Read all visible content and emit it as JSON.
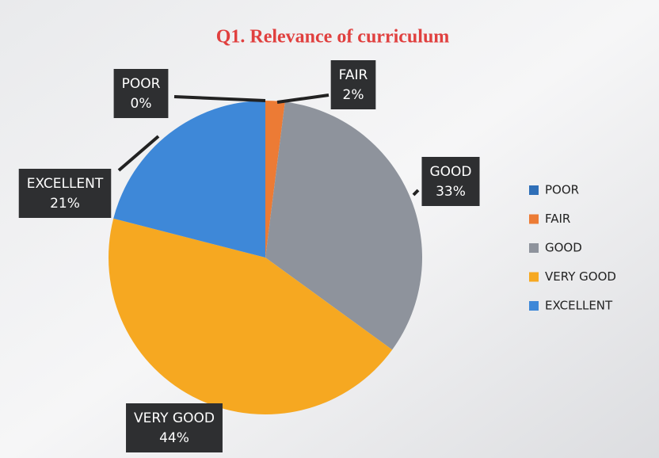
{
  "chart_data": {
    "type": "pie",
    "title": "Q1. Relevance of curriculum",
    "categories": [
      "POOR",
      "FAIR",
      "GOOD",
      "VERY GOOD",
      "EXCELLENT"
    ],
    "values": [
      0,
      2,
      33,
      44,
      21
    ],
    "value_labels": [
      "0%",
      "2%",
      "33%",
      "44%",
      "21%"
    ],
    "colors": [
      "#2f6fb8",
      "#ec7b35",
      "#8e939c",
      "#f6a821",
      "#3e88d8"
    ],
    "legend": "right"
  }
}
